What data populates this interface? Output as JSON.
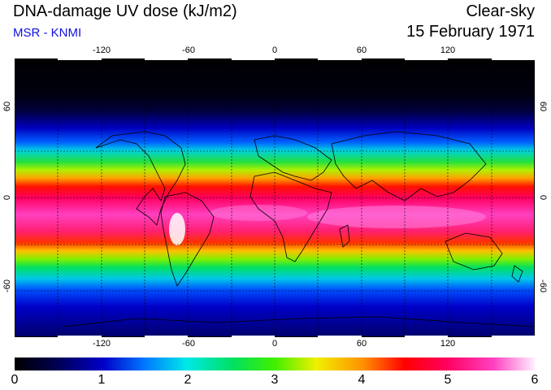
{
  "header": {
    "title": "DNA-damage UV dose (kJ/m2)",
    "source": "MSR - KNMI",
    "condition": "Clear-sky",
    "date": "15 February 1971"
  },
  "axes": {
    "lon_ticks": [
      "-120",
      "-60",
      "0",
      "60",
      "120"
    ],
    "lon_values": [
      -120,
      -60,
      0,
      60,
      120
    ],
    "lat_ticks": [
      "60",
      "0",
      "-60"
    ],
    "lat_values": [
      60,
      0,
      -60
    ],
    "lon_range": [
      -180,
      180
    ],
    "lat_range": [
      -90,
      90
    ]
  },
  "colorbar": {
    "labels": [
      "0",
      "1",
      "2",
      "3",
      "4",
      "5",
      "6"
    ],
    "range": [
      0,
      6
    ]
  },
  "colors": {
    "scale": [
      "#000000",
      "#000050",
      "#0000c8",
      "#0078ff",
      "#00e8e8",
      "#00e060",
      "#40f000",
      "#f0f000",
      "#ff9000",
      "#ff0000",
      "#ff0060",
      "#ff40c0",
      "#ffb0f0",
      "#ffffff"
    ]
  }
}
